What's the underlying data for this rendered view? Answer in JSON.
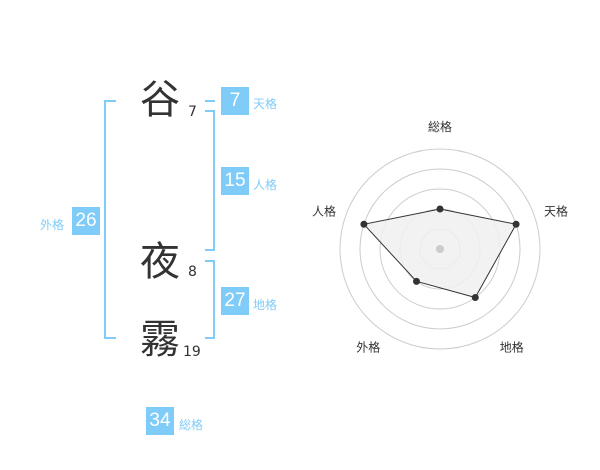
{
  "name": {
    "chars": [
      {
        "char": "谷",
        "strokes": "7"
      },
      {
        "char": "夜",
        "strokes": "8"
      },
      {
        "char": "霧",
        "strokes": "19"
      }
    ]
  },
  "fortunes": {
    "tenkaku": {
      "label": "天格",
      "value": "7"
    },
    "jinkaku": {
      "label": "人格",
      "value": "15"
    },
    "chikaku": {
      "label": "地格",
      "value": "27"
    },
    "gaikaku": {
      "label": "外格",
      "value": "26"
    },
    "soukaku": {
      "label": "総格",
      "value": "34"
    }
  },
  "colors": {
    "accent": "#80ccf9",
    "grid": "#cccccc",
    "fill": "#f0f0f0",
    "line": "#333333"
  },
  "chart_data": {
    "type": "radar",
    "axes": [
      "総格",
      "天格",
      "地格",
      "外格",
      "人格"
    ],
    "values": [
      2,
      4,
      3,
      2,
      4
    ],
    "range": [
      0,
      5
    ],
    "rings": 5
  }
}
